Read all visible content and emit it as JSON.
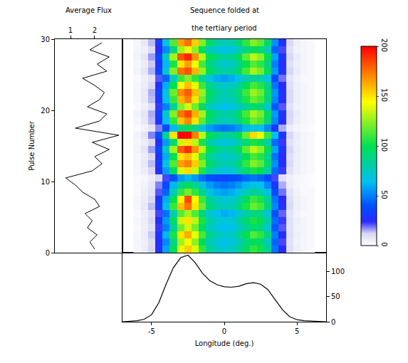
{
  "chart_data": [
    {
      "type": "line",
      "title": "Average Flux",
      "ylabel": "Pulse Number",
      "x": [
        2.0,
        1.8,
        2.1,
        1.7,
        1.9,
        1.6,
        2.2,
        2.0,
        1.5,
        1.2,
        0.8,
        1.9,
        2.3,
        2.0,
        2.6,
        1.9,
        3.0,
        1.2,
        2.2,
        2.5,
        1.7,
        2.2,
        2.4,
        2.0,
        1.5,
        2.5,
        2.1,
        2.6,
        1.8,
        2.3
      ],
      "y": [
        0.5,
        1.5,
        2.5,
        3.5,
        4.5,
        5.5,
        6.5,
        7.5,
        8.5,
        9.5,
        10.5,
        11.5,
        12.5,
        13.5,
        14.5,
        15.5,
        16.5,
        17.5,
        18.5,
        19.5,
        20.5,
        21.5,
        22.5,
        23.5,
        24.5,
        25.5,
        26.5,
        27.5,
        28.5,
        29.5
      ],
      "color": "#000000",
      "xlim": [
        0.35,
        3.15
      ],
      "xticks": [
        1,
        2
      ],
      "ylim": [
        0,
        30
      ],
      "yticks": [
        0,
        10,
        20,
        30
      ]
    },
    {
      "type": "heatmap",
      "title": [
        "Sequence folded at",
        "the tertiary period"
      ],
      "x": [
        -6,
        -5.5,
        -5,
        -4.5,
        -4,
        -3.5,
        -3,
        -2.5,
        -2,
        -1.5,
        -1,
        -0.5,
        0,
        0.5,
        1,
        1.5,
        2,
        2.5,
        3,
        3.5,
        4,
        4.5,
        5,
        5.5,
        6
      ],
      "y": [
        0.5,
        1.5,
        2.5,
        3.5,
        4.5,
        5.5,
        6.5,
        7.5,
        8.5,
        9.5,
        10.5,
        11.5,
        12.5,
        13.5,
        14.5,
        15.5,
        16.5,
        17.5,
        18.5,
        19.5,
        20.5,
        21.5,
        22.5,
        23.5,
        24.5,
        25.5,
        26.5,
        27.5,
        28.5,
        29.5
      ],
      "cells": [
        [
          3,
          6,
          12,
          27,
          58,
          98,
          140,
          155,
          138,
          108,
          84,
          74,
          70,
          73,
          82,
          96,
          108,
          102,
          84,
          48,
          24,
          10,
          5,
          3,
          2
        ],
        [
          3,
          5,
          11,
          25,
          52,
          88,
          128,
          142,
          125,
          98,
          78,
          70,
          66,
          68,
          76,
          88,
          98,
          94,
          76,
          44,
          22,
          9,
          4,
          3,
          2
        ],
        [
          3,
          6,
          13,
          29,
          62,
          104,
          150,
          162,
          140,
          112,
          88,
          78,
          72,
          74,
          84,
          100,
          114,
          108,
          88,
          50,
          25,
          10,
          5,
          3,
          2
        ],
        [
          2,
          5,
          10,
          23,
          50,
          84,
          120,
          135,
          120,
          95,
          76,
          68,
          64,
          66,
          74,
          84,
          94,
          90,
          72,
          42,
          21,
          9,
          4,
          3,
          2
        ],
        [
          3,
          6,
          12,
          26,
          56,
          94,
          135,
          150,
          132,
          104,
          82,
          72,
          68,
          70,
          80,
          92,
          104,
          98,
          80,
          46,
          23,
          9,
          5,
          3,
          2
        ],
        [
          2,
          5,
          10,
          22,
          47,
          80,
          115,
          128,
          114,
          90,
          72,
          64,
          60,
          62,
          70,
          80,
          90,
          86,
          70,
          40,
          20,
          8,
          4,
          2,
          2
        ],
        [
          3,
          7,
          14,
          30,
          65,
          110,
          158,
          175,
          150,
          118,
          92,
          80,
          75,
          78,
          88,
          104,
          118,
          112,
          90,
          52,
          26,
          11,
          5,
          3,
          2
        ],
        [
          3,
          6,
          12,
          28,
          60,
          100,
          146,
          185,
          145,
          110,
          84,
          74,
          70,
          72,
          80,
          96,
          110,
          104,
          84,
          48,
          24,
          10,
          5,
          3,
          2
        ],
        [
          2,
          5,
          9,
          21,
          44,
          76,
          108,
          120,
          108,
          86,
          68,
          60,
          57,
          60,
          66,
          76,
          84,
          80,
          66,
          38,
          19,
          8,
          4,
          2,
          2
        ],
        [
          2,
          4,
          8,
          18,
          36,
          62,
          88,
          96,
          86,
          68,
          56,
          50,
          48,
          50,
          55,
          62,
          68,
          64,
          52,
          30,
          15,
          6,
          3,
          2,
          1
        ],
        [
          2,
          3,
          6,
          12,
          22,
          40,
          56,
          62,
          56,
          46,
          40,
          36,
          35,
          38,
          40,
          45,
          48,
          45,
          36,
          22,
          10,
          5,
          3,
          2,
          1
        ],
        [
          3,
          6,
          12,
          26,
          57,
          95,
          138,
          152,
          134,
          105,
          82,
          72,
          68,
          70,
          80,
          92,
          104,
          98,
          80,
          46,
          23,
          9,
          5,
          3,
          2
        ],
        [
          3,
          7,
          14,
          31,
          68,
          114,
          165,
          172,
          155,
          122,
          95,
          82,
          77,
          80,
          90,
          108,
          122,
          116,
          92,
          54,
          27,
          11,
          5,
          3,
          2
        ],
        [
          3,
          6,
          12,
          28,
          60,
          100,
          150,
          158,
          140,
          110,
          86,
          76,
          72,
          74,
          82,
          98,
          112,
          106,
          86,
          48,
          24,
          10,
          5,
          3,
          2
        ],
        [
          4,
          8,
          16,
          36,
          76,
          128,
          180,
          190,
          168,
          132,
          100,
          88,
          82,
          86,
          96,
          116,
          132,
          124,
          98,
          58,
          28,
          12,
          6,
          3,
          2
        ],
        [
          3,
          6,
          12,
          26,
          56,
          94,
          136,
          150,
          132,
          104,
          82,
          72,
          68,
          70,
          80,
          92,
          104,
          98,
          80,
          46,
          23,
          9,
          5,
          3,
          2
        ],
        [
          4,
          8,
          18,
          40,
          86,
          150,
          200,
          198,
          172,
          132,
          100,
          88,
          82,
          86,
          96,
          118,
          152,
          140,
          110,
          64,
          30,
          12,
          6,
          3,
          2
        ],
        [
          2,
          4,
          8,
          18,
          36,
          62,
          90,
          98,
          86,
          68,
          56,
          50,
          48,
          50,
          55,
          62,
          68,
          64,
          52,
          30,
          15,
          6,
          3,
          2,
          1
        ],
        [
          3,
          7,
          14,
          30,
          64,
          108,
          156,
          170,
          150,
          116,
          90,
          80,
          75,
          78,
          88,
          104,
          118,
          112,
          90,
          52,
          26,
          11,
          5,
          3,
          2
        ],
        [
          4,
          8,
          15,
          34,
          72,
          122,
          174,
          185,
          162,
          128,
          98,
          86,
          80,
          84,
          94,
          112,
          128,
          120,
          96,
          56,
          28,
          12,
          6,
          3,
          2
        ],
        [
          2,
          5,
          10,
          23,
          50,
          84,
          122,
          136,
          120,
          95,
          76,
          68,
          64,
          66,
          74,
          84,
          94,
          90,
          72,
          42,
          21,
          9,
          4,
          3,
          2
        ],
        [
          3,
          7,
          14,
          30,
          65,
          110,
          160,
          172,
          150,
          118,
          92,
          80,
          75,
          78,
          88,
          104,
          118,
          112,
          90,
          52,
          26,
          11,
          5,
          3,
          2
        ],
        [
          3,
          7,
          15,
          33,
          70,
          118,
          170,
          180,
          158,
          125,
          96,
          84,
          78,
          82,
          92,
          110,
          126,
          118,
          94,
          55,
          27,
          11,
          5,
          3,
          2
        ],
        [
          3,
          6,
          12,
          28,
          60,
          100,
          145,
          158,
          140,
          110,
          86,
          76,
          72,
          74,
          82,
          98,
          112,
          106,
          86,
          48,
          24,
          10,
          5,
          3,
          2
        ],
        [
          2,
          5,
          9,
          21,
          44,
          76,
          110,
          122,
          108,
          86,
          68,
          60,
          57,
          60,
          66,
          76,
          84,
          80,
          66,
          38,
          19,
          8,
          4,
          2,
          2
        ],
        [
          4,
          8,
          15,
          34,
          72,
          122,
          175,
          182,
          160,
          126,
          98,
          86,
          80,
          84,
          94,
          112,
          128,
          120,
          96,
          56,
          28,
          12,
          6,
          3,
          2
        ],
        [
          3,
          6,
          13,
          29,
          62,
          104,
          150,
          165,
          142,
          112,
          88,
          78,
          72,
          74,
          84,
          100,
          114,
          108,
          88,
          50,
          25,
          10,
          5,
          3,
          2
        ],
        [
          4,
          8,
          16,
          36,
          76,
          128,
          182,
          192,
          168,
          132,
          100,
          88,
          82,
          86,
          96,
          116,
          132,
          124,
          98,
          58,
          28,
          12,
          6,
          3,
          2
        ],
        [
          3,
          5,
          11,
          25,
          52,
          88,
          128,
          140,
          125,
          98,
          78,
          70,
          66,
          68,
          76,
          88,
          98,
          94,
          76,
          44,
          22,
          9,
          4,
          3,
          2
        ],
        [
          3,
          7,
          14,
          31,
          68,
          114,
          164,
          175,
          154,
          122,
          95,
          82,
          77,
          80,
          90,
          108,
          122,
          116,
          92,
          54,
          27,
          11,
          5,
          3,
          2
        ]
      ],
      "xlim": [
        -7,
        7
      ],
      "ylim": [
        0,
        30
      ],
      "zlim": [
        0,
        200
      ],
      "zticks": [
        0,
        50,
        100,
        150,
        200
      ],
      "tick_labels": false
    },
    {
      "type": "line",
      "xlabel": "Longitude (deg.)",
      "x": [
        -7,
        -6.5,
        -6,
        -5.5,
        -5,
        -4.5,
        -4,
        -3.5,
        -3,
        -2.5,
        -2,
        -1.5,
        -1,
        -0.5,
        0,
        0.5,
        1,
        1.5,
        2,
        2.5,
        3,
        3.5,
        4,
        4.5,
        5,
        5.5,
        6,
        6.5,
        7
      ],
      "values": [
        0,
        1,
        2,
        5,
        14,
        38,
        75,
        108,
        128,
        133,
        118,
        97,
        82,
        74,
        70,
        69,
        71,
        76,
        78,
        75,
        64,
        44,
        24,
        10,
        4,
        2,
        1,
        0,
        0
      ],
      "color": "#000000",
      "xlim": [
        -7,
        7
      ],
      "xticks": [
        -5,
        0,
        5
      ],
      "ylim": [
        0,
        138
      ],
      "yticks": [
        0,
        50,
        100
      ]
    }
  ]
}
